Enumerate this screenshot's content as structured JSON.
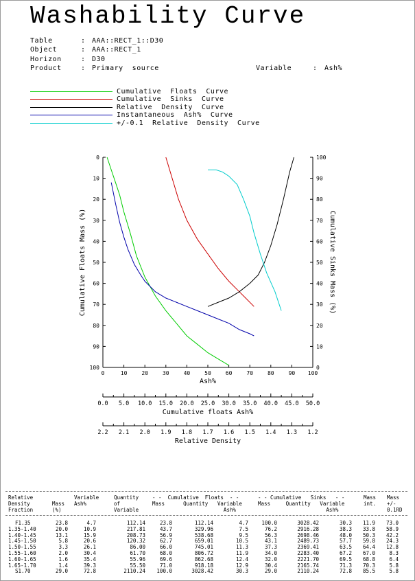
{
  "title": "Washability Curve",
  "meta": {
    "table_label": "Table",
    "table_value": "AAA::RECT_1::D30",
    "object_label": "Object",
    "object_value": "AAA::RECT_1",
    "horizon_label": "Horizon",
    "horizon_value": "D30",
    "product_label": "Product",
    "product_value": "Primary  source",
    "variable_label": "Variable",
    "variable_value": "Ash%"
  },
  "legend": [
    {
      "label": "Cumulative  Floats  Curve",
      "color": "#00cc00"
    },
    {
      "label": "Cumulative  Sinks  Curve",
      "color": "#cc0000"
    },
    {
      "label": "Relative  Density  Curve",
      "color": "#000000"
    },
    {
      "label": "Instantaneous  Ash%  Curve",
      "color": "#0000aa"
    },
    {
      "label": "+/-0.1  Relative  Density  Curve",
      "color": "#00cccc"
    }
  ],
  "chart_data": {
    "type": "line",
    "xlabel": "Ash%",
    "ylabel_left": "Cumulative Floats Mass (%)",
    "ylabel_right": "Cumulative Sinks Mass (%)",
    "x_ticks": [
      "0",
      "10",
      "20",
      "30",
      "40",
      "50",
      "60",
      "70",
      "80",
      "90",
      "100"
    ],
    "left_ticks": [
      "0",
      "10",
      "20",
      "30",
      "40",
      "50",
      "60",
      "70",
      "80",
      "90",
      "100"
    ],
    "right_ticks": [
      "100",
      "90",
      "80",
      "70",
      "60",
      "50",
      "40",
      "30",
      "20",
      "10",
      "0"
    ],
    "xlim": [
      0,
      100
    ],
    "ylim_left": [
      0,
      100
    ],
    "ylim_right": [
      100,
      0
    ],
    "series": [
      {
        "color": "#00cc00",
        "axis": "left",
        "x": [
          2,
          4,
          6,
          8,
          10,
          13,
          16,
          20,
          25,
          30,
          35,
          40,
          45,
          50,
          55,
          60
        ],
        "y": [
          0,
          6,
          12,
          18,
          26,
          36,
          47,
          57,
          66,
          73,
          79,
          85,
          89,
          93,
          96,
          99
        ]
      },
      {
        "color": "#cc0000",
        "axis": "left",
        "x": [
          30,
          33,
          36,
          40,
          45,
          50,
          55,
          60,
          65,
          68,
          72
        ],
        "y": [
          0,
          10,
          20,
          30,
          39,
          46,
          53,
          59,
          64,
          67,
          71
        ]
      },
      {
        "color": "#000000",
        "axis": "left",
        "x": [
          50,
          55,
          60,
          65,
          70,
          74,
          77,
          80,
          83,
          86,
          89,
          91
        ],
        "y": [
          71,
          69,
          67,
          64,
          60,
          56,
          50,
          42,
          32,
          20,
          7,
          0
        ]
      },
      {
        "color": "#0000aa",
        "axis": "left",
        "x": [
          4,
          6,
          8,
          10,
          12,
          15,
          18,
          20,
          25,
          30,
          35,
          40,
          45,
          50,
          55,
          60,
          65,
          70,
          72
        ],
        "y": [
          12,
          22,
          31,
          38,
          44,
          51,
          56,
          59,
          64,
          67,
          69,
          71,
          73,
          75,
          77,
          79,
          82,
          84,
          85
        ]
      },
      {
        "color": "#00cccc",
        "axis": "left",
        "x": [
          50,
          54,
          57,
          60,
          64,
          67,
          70,
          72,
          75,
          78,
          82,
          85
        ],
        "y": [
          6,
          6,
          7,
          9,
          13,
          20,
          28,
          36,
          46,
          55,
          64,
          73
        ]
      }
    ]
  },
  "floats_axis": {
    "label": "Cumulative  floats  Ash%",
    "ticks": [
      "0.0",
      "5.0",
      "10.0",
      "15.0",
      "20.0",
      "25.0",
      "30.0",
      "35.0",
      "40.0",
      "45.0",
      "50.0"
    ]
  },
  "density_axis": {
    "label": "Relative  Density",
    "ticks": [
      "2.2",
      "2.1",
      "2.0",
      "1.9",
      "1.8",
      "1.7",
      "1.6",
      "1.5",
      "1.4",
      "1.3",
      "1.2"
    ]
  },
  "table": {
    "headers": {
      "rel": "Relative\nDensity\nFraction",
      "mass": "\nMass\n(%)",
      "var": "Variable\nAsh%",
      "qty": "Quantity\nof\nVariable",
      "cf_title": "- -  Cumulative  Floats  - -",
      "cf_cols": "Mass      Quantity   Variable\n                       Ash%",
      "cs_title": "- - Cumulative   Sinks   - -",
      "cs_cols": "Mass     Quantity   Variable\n                      Ash%",
      "mint": "Mass\nint.",
      "mpm": "Mass\n+/-\n0.1RD"
    },
    "rows": [
      [
        "F1.35",
        "23.8",
        "4.7",
        "112.14",
        "23.8",
        "112.14",
        "4.7",
        "100.0",
        "3028.42",
        "30.3",
        "11.9",
        "73.0"
      ],
      [
        "1.35-1.40",
        "20.0",
        "10.9",
        "217.81",
        "43.7",
        "329.96",
        "7.5",
        "76.2",
        "2916.28",
        "38.3",
        "33.8",
        "58.9"
      ],
      [
        "1.40-1.45",
        "13.1",
        "15.9",
        "208.73",
        "56.9",
        "538.68",
        "9.5",
        "56.3",
        "2698.46",
        "48.0",
        "50.3",
        "42.2"
      ],
      [
        "1.45-1.50",
        "5.8",
        "20.6",
        "120.32",
        "62.7",
        "659.01",
        "10.5",
        "43.1",
        "2489.73",
        "57.7",
        "59.8",
        "24.3"
      ],
      [
        "1.50-1.55",
        "3.3",
        "26.1",
        "86.00",
        "66.0",
        "745.01",
        "11.3",
        "37.3",
        "2369.41",
        "63.5",
        "64.4",
        "12.8"
      ],
      [
        "1.55-1.60",
        "2.0",
        "30.4",
        "61.70",
        "68.0",
        "806.72",
        "11.9",
        "34.0",
        "2283.40",
        "67.2",
        "67.0",
        "8.3"
      ],
      [
        "1.60-1.65",
        "1.6",
        "35.4",
        "55.96",
        "69.6",
        "862.68",
        "12.4",
        "32.0",
        "2221.70",
        "69.5",
        "68.8",
        "6.4"
      ],
      [
        "1.65-1.70",
        "1.4",
        "39.3",
        "55.50",
        "71.0",
        "918.18",
        "12.9",
        "30.4",
        "2165.74",
        "71.3",
        "70.3",
        "5.8"
      ],
      [
        "S1.70",
        "29.0",
        "72.8",
        "2110.24",
        "100.0",
        "3028.42",
        "30.3",
        "29.0",
        "2110.24",
        "72.8",
        "85.5",
        "5.8"
      ]
    ]
  }
}
